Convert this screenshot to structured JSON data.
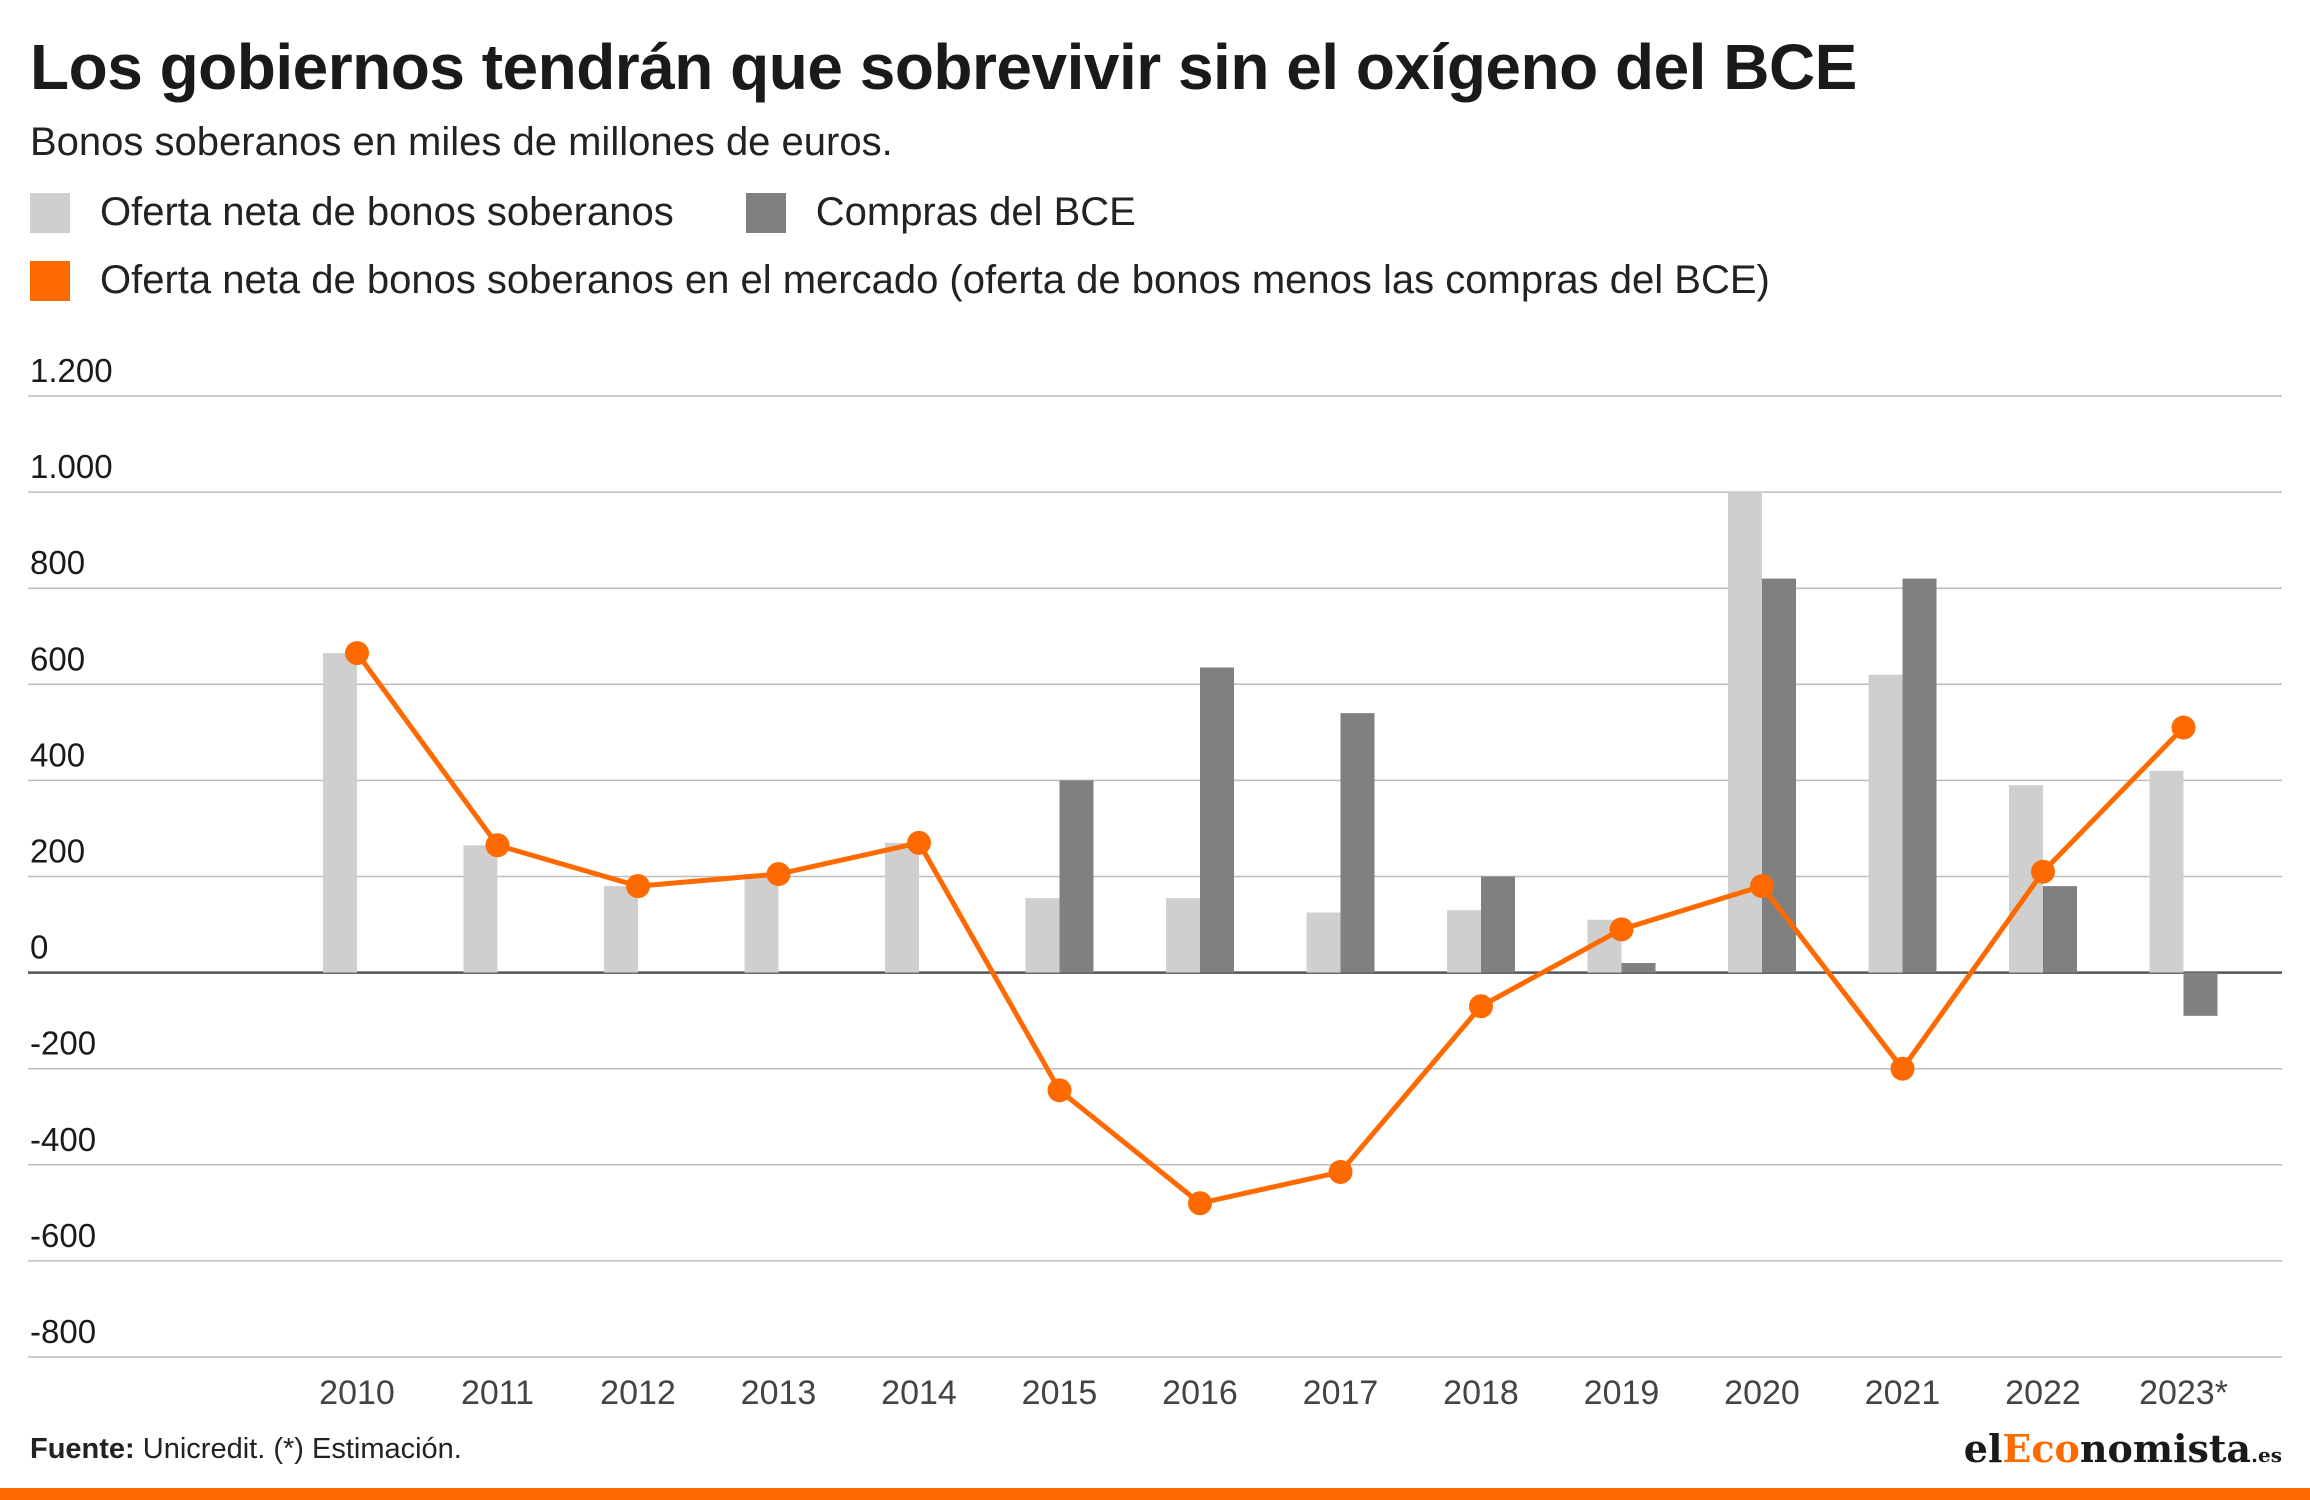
{
  "header": {
    "title": "Los gobiernos tendrán que sobrevivir sin el oxígeno del BCE",
    "subtitle": "Bonos soberanos en miles de millones de euros."
  },
  "legend": {
    "supply": "Oferta neta de bonos soberanos",
    "ecb": "Compras del BCE",
    "market": "Oferta neta de bonos soberanos en el mercado (oferta de bonos menos las compras del BCE)"
  },
  "colors": {
    "supply": "#cfcfcf",
    "ecb": "#808080",
    "market": "#ff6a00",
    "grid": "#bdbdbd",
    "zero": "#555555"
  },
  "chart_data": {
    "type": "bar",
    "categories": [
      "2010",
      "2011",
      "2012",
      "2013",
      "2014",
      "2015",
      "2016",
      "2017",
      "2018",
      "2019",
      "2020",
      "2021",
      "2022",
      "2023*"
    ],
    "ylim": [
      -800,
      1200
    ],
    "yticks": [
      1200,
      1000,
      800,
      600,
      400,
      200,
      0,
      -200,
      -400,
      -600,
      -800
    ],
    "ytick_labels": [
      "1.200",
      "1.000",
      "800",
      "600",
      "400",
      "200",
      "0",
      "-200",
      "-400",
      "-600",
      "-800"
    ],
    "series": [
      {
        "name": "Oferta neta de bonos soberanos",
        "kind": "bar",
        "values": [
          665,
          265,
          180,
          205,
          270,
          155,
          155,
          125,
          130,
          110,
          1000,
          620,
          390,
          420
        ]
      },
      {
        "name": "Compras del BCE",
        "kind": "bar",
        "values": [
          0,
          0,
          0,
          0,
          0,
          400,
          635,
          540,
          200,
          20,
          820,
          820,
          180,
          -90
        ]
      },
      {
        "name": "Oferta neta de bonos soberanos en el mercado (oferta de bonos menos las compras del BCE)",
        "kind": "line",
        "values": [
          665,
          265,
          180,
          205,
          270,
          -245,
          -480,
          -415,
          -70,
          90,
          180,
          -200,
          210,
          510
        ]
      }
    ]
  },
  "footer": {
    "source_label": "Fuente:",
    "source_text": " Unicredit. (*) Estimación.",
    "brand_prefix": "el",
    "brand_accent": "Eco",
    "brand_rest": "nomista",
    "brand_tld": ".es"
  }
}
